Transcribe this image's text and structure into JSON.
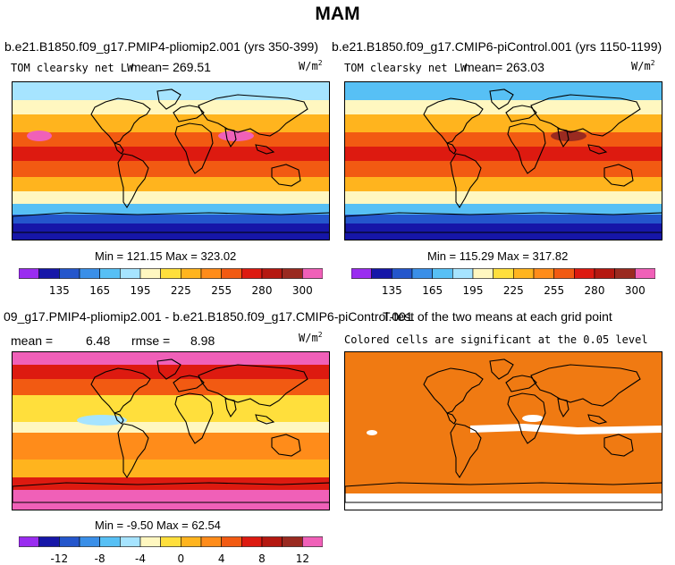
{
  "title": "MAM",
  "panels": {
    "p1": {
      "title": "b.e21.B1850.f09_g17.PMIP4-pliomip2.001 (yrs 350-399)",
      "left_label": "TOM clearsky net LW",
      "mean_label": "mean= 269.51",
      "units": "W/m",
      "units_exp": "2",
      "minmax": "Min = 121.15 Max = 323.02"
    },
    "p2": {
      "title": "b.e21.B1850.f09_g17.CMIP6-piControl.001 (yrs 1150-1199)",
      "left_label": "TOM clearsky net LW",
      "mean_label": "mean= 263.03",
      "units": "W/m",
      "units_exp": "2",
      "minmax": "Min = 115.29 Max = 317.82"
    },
    "p3": {
      "title": "09_g17.PMIP4-pliomip2.001 - b.e21.B1850.f09_g17.CMIP6-piControl.001",
      "mean_label": "mean =",
      "mean_value": "6.48",
      "rmse_label": "rmse =",
      "rmse_value": "8.98",
      "units": "W/m",
      "units_exp": "2",
      "minmax": "Min = -9.50 Max = 62.54"
    },
    "p4": {
      "title": "T-test of the two means at each grid point",
      "subtitle": "Colored cells are significant at the 0.05 level"
    }
  },
  "colorbar_abs": {
    "colors": [
      "#9a2cf0",
      "#1616a8",
      "#2456cc",
      "#3a8fe8",
      "#57c0f5",
      "#a6e4ff",
      "#fff7c0",
      "#ffdf3c",
      "#ffb41e",
      "#ff8c1a",
      "#f25a12",
      "#dd1a10",
      "#b51810",
      "#9a2a20",
      "#f060b8"
    ],
    "ticks": [
      "135",
      "165",
      "195",
      "225",
      "255",
      "280",
      "300"
    ]
  },
  "colorbar_diff": {
    "colors": [
      "#9a2cf0",
      "#1616a8",
      "#2456cc",
      "#3a8fe8",
      "#57c0f5",
      "#a6e4ff",
      "#fff7c0",
      "#ffdf3c",
      "#ffb41e",
      "#ff8c1a",
      "#f25a12",
      "#dd1a10",
      "#b51810",
      "#9a2a20",
      "#f060b8"
    ],
    "ticks": [
      "-12",
      "-8",
      "-4",
      "0",
      "4",
      "8",
      "12"
    ]
  },
  "chart_data": [
    {
      "type": "heatmap",
      "title": "b.e21.B1850.f09_g17.PMIP4-pliomip2.001 (yrs 350-399)",
      "variable": "TOM clearsky net LW",
      "units": "W/m2",
      "mean": 269.51,
      "min": 121.15,
      "max": 323.02,
      "colorbar_ticks": [
        135,
        165,
        195,
        225,
        255,
        280,
        300
      ]
    },
    {
      "type": "heatmap",
      "title": "b.e21.B1850.f09_g17.CMIP6-piControl.001 (yrs 1150-1199)",
      "variable": "TOM clearsky net LW",
      "units": "W/m2",
      "mean": 263.03,
      "min": 115.29,
      "max": 317.82,
      "colorbar_ticks": [
        135,
        165,
        195,
        225,
        255,
        280,
        300
      ]
    },
    {
      "type": "heatmap",
      "title": "09_g17.PMIP4-pliomip2.001 - b.e21.B1850.f09_g17.CMIP6-piControl.001",
      "units": "W/m2",
      "mean": 6.48,
      "rmse": 8.98,
      "min": -9.5,
      "max": 62.54,
      "colorbar_ticks": [
        -12,
        -8,
        -4,
        0,
        4,
        8,
        12
      ]
    },
    {
      "type": "heatmap",
      "title": "T-test of the two means at each grid point",
      "subtitle": "Colored cells are significant at the 0.05 level",
      "significance_level": 0.05
    }
  ]
}
